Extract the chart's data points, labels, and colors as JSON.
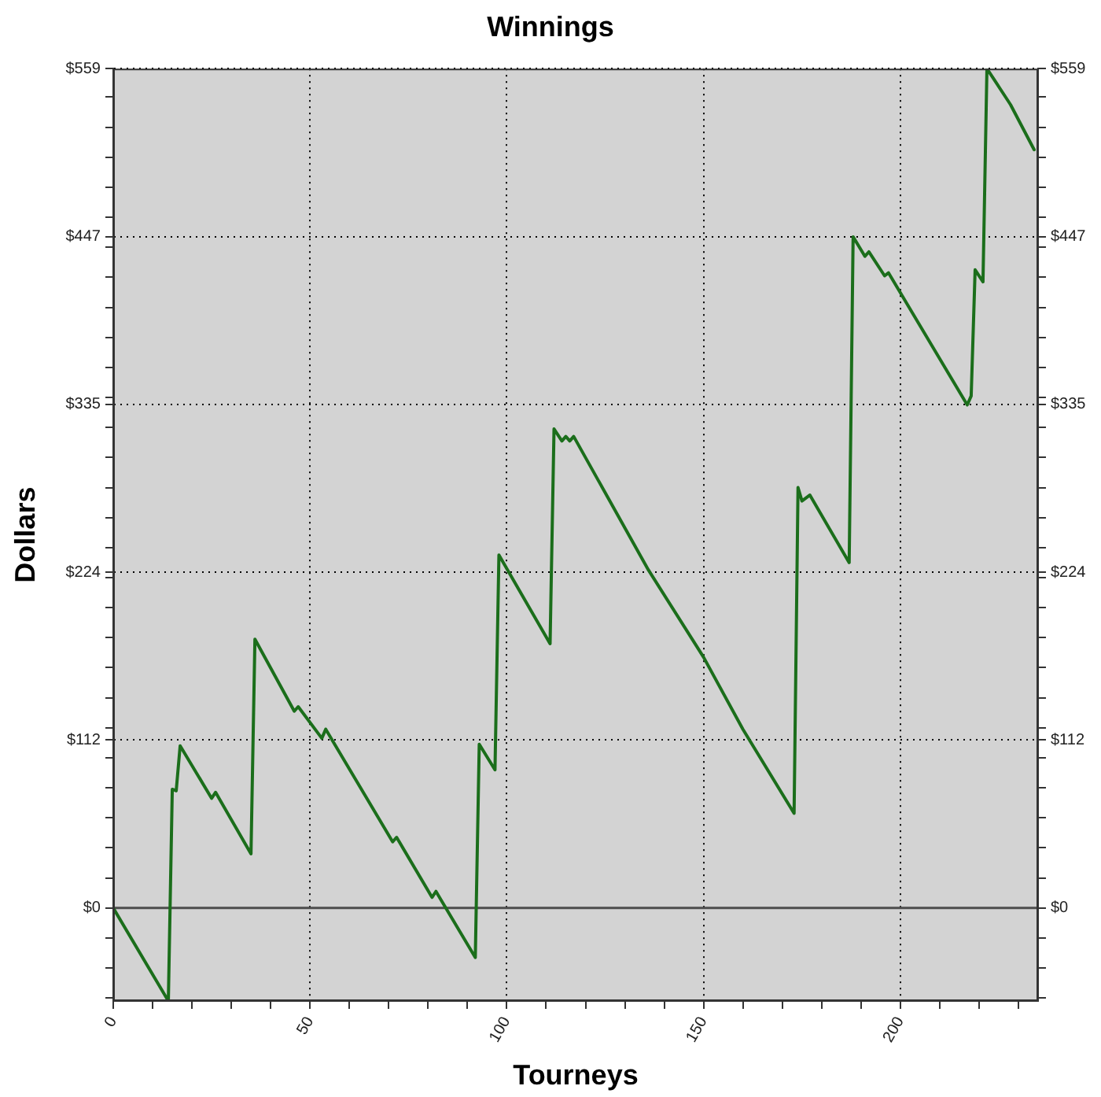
{
  "chart_data": {
    "type": "line",
    "title": "Winnings",
    "xlabel": "Tourneys",
    "ylabel": "Dollars",
    "x": [
      0,
      14,
      15,
      16,
      17,
      25,
      26,
      35,
      36,
      46,
      47,
      53,
      54,
      71,
      72,
      81,
      82,
      92,
      93,
      97,
      98,
      111,
      112,
      114,
      115,
      116,
      117,
      136,
      150,
      160,
      173,
      174,
      175,
      177,
      187,
      188,
      191,
      192,
      196,
      197,
      217,
      218,
      219,
      221,
      222,
      224,
      228,
      234
    ],
    "values": [
      0,
      -62,
      79,
      78,
      108,
      73,
      77,
      36,
      179,
      131,
      134,
      113,
      119,
      44,
      47,
      7,
      11,
      -33,
      109,
      92,
      235,
      176,
      319,
      311,
      314,
      311,
      314,
      225,
      167,
      119,
      63,
      280,
      271,
      275,
      230,
      447,
      434,
      437,
      421,
      423,
      335,
      341,
      425,
      417,
      559,
      551,
      535,
      505
    ],
    "color": "#1b6e1b",
    "xlim": [
      0,
      235
    ],
    "xticks": [
      0,
      {
        "value": 10,
        "label": null
      },
      {
        "value": 20,
        "label": null
      },
      {
        "value": 30,
        "label": null
      },
      {
        "value": 40,
        "label": null
      },
      50,
      {
        "value": 60,
        "label": null
      },
      {
        "value": 70,
        "label": null
      },
      {
        "value": 80,
        "label": null
      },
      {
        "value": 90,
        "label": null
      },
      100,
      {
        "value": 110,
        "label": null
      },
      {
        "value": 120,
        "label": null
      },
      {
        "value": 130,
        "label": null
      },
      {
        "value": 140,
        "label": null
      },
      150,
      {
        "value": 160,
        "label": null
      },
      {
        "value": 170,
        "label": null
      },
      {
        "value": 180,
        "label": null
      },
      {
        "value": 190,
        "label": null
      },
      200,
      {
        "value": 210,
        "label": null
      },
      {
        "value": 220,
        "label": null
      },
      {
        "value": 230,
        "label": null
      }
    ],
    "ylim": [
      -62,
      559
    ],
    "yticks": [
      {
        "value": -60,
        "label": null
      },
      {
        "value": -40,
        "label": null
      },
      {
        "value": -20,
        "label": null
      },
      {
        "value": 0,
        "label": "$0"
      },
      {
        "value": 20,
        "label": null
      },
      {
        "value": 40,
        "label": null
      },
      {
        "value": 60,
        "label": null
      },
      {
        "value": 80,
        "label": null
      },
      {
        "value": 100,
        "label": null
      },
      {
        "value": 111.8,
        "label": "$112"
      },
      {
        "value": 120,
        "label": null
      },
      {
        "value": 140,
        "label": null
      },
      {
        "value": 160,
        "label": null
      },
      {
        "value": 180,
        "label": null
      },
      {
        "value": 200,
        "label": null
      },
      {
        "value": 220,
        "label": null
      },
      {
        "value": 223.6,
        "label": "$224"
      },
      {
        "value": 240,
        "label": null
      },
      {
        "value": 260,
        "label": null
      },
      {
        "value": 280,
        "label": null
      },
      {
        "value": 300,
        "label": null
      },
      {
        "value": 320,
        "label": null
      },
      {
        "value": 335.4,
        "label": "$335"
      },
      {
        "value": 340,
        "label": null
      },
      {
        "value": 360,
        "label": null
      },
      {
        "value": 380,
        "label": null
      },
      {
        "value": 400,
        "label": null
      },
      {
        "value": 420,
        "label": null
      },
      {
        "value": 440,
        "label": null
      },
      {
        "value": 447.2,
        "label": "$447"
      },
      {
        "value": 460,
        "label": null
      },
      {
        "value": 480,
        "label": null
      },
      {
        "value": 500,
        "label": null
      },
      {
        "value": 520,
        "label": null
      },
      {
        "value": 540,
        "label": null
      },
      {
        "value": 559,
        "label": "$559"
      }
    ],
    "y2lim": [
      -62,
      559
    ],
    "y2ticks": [
      {
        "value": -60,
        "label": null
      },
      {
        "value": -40,
        "label": null
      },
      {
        "value": -20,
        "label": null
      },
      {
        "value": 0,
        "label": "$0"
      },
      {
        "value": 20,
        "label": null
      },
      {
        "value": 40,
        "label": null
      },
      {
        "value": 60,
        "label": null
      },
      {
        "value": 80,
        "label": null
      },
      {
        "value": 100,
        "label": null
      },
      {
        "value": 111.8,
        "label": "$112"
      },
      {
        "value": 120,
        "label": null
      },
      {
        "value": 140,
        "label": null
      },
      {
        "value": 160,
        "label": null
      },
      {
        "value": 180,
        "label": null
      },
      {
        "value": 200,
        "label": null
      },
      {
        "value": 220,
        "label": null
      },
      {
        "value": 223.6,
        "label": "$224"
      },
      {
        "value": 240,
        "label": null
      },
      {
        "value": 260,
        "label": null
      },
      {
        "value": 280,
        "label": null
      },
      {
        "value": 300,
        "label": null
      },
      {
        "value": 320,
        "label": null
      },
      {
        "value": 335.4,
        "label": "$335"
      },
      {
        "value": 340,
        "label": null
      },
      {
        "value": 360,
        "label": null
      },
      {
        "value": 380,
        "label": null
      },
      {
        "value": 400,
        "label": null
      },
      {
        "value": 420,
        "label": null
      },
      {
        "value": 440,
        "label": null
      },
      {
        "value": 447.2,
        "label": "$447"
      },
      {
        "value": 460,
        "label": null
      },
      {
        "value": 480,
        "label": null
      },
      {
        "value": 500,
        "label": null
      },
      {
        "value": 520,
        "label": null
      },
      {
        "value": 540,
        "label": null
      },
      {
        "value": 559,
        "label": "$559"
      }
    ],
    "grid": true,
    "ref_lines": [
      {
        "axis": "y",
        "value": 0,
        "color": "#4d4d4d"
      }
    ]
  }
}
